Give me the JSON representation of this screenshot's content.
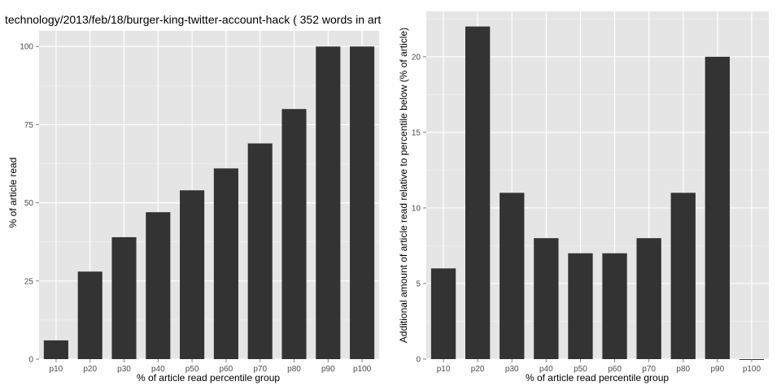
{
  "chart_data": [
    {
      "type": "bar",
      "title": "technology/2013/feb/18/burger-king-twitter-account-hack ( 352 words in art",
      "xlabel": "% of article read percentile group",
      "ylabel": "% of article read",
      "categories": [
        "p10",
        "p20",
        "p30",
        "p40",
        "p50",
        "p60",
        "p70",
        "p80",
        "p90",
        "p100"
      ],
      "values": [
        6,
        28,
        39,
        47,
        54,
        61,
        69,
        80,
        100,
        100
      ],
      "ylim": [
        0,
        105
      ],
      "yticks": [
        0,
        25,
        50,
        75,
        100
      ],
      "grid": true,
      "bar_color": "#333333",
      "panel_bg": "#e5e5e5",
      "grid_color": "#ffffff"
    },
    {
      "type": "bar",
      "title": "",
      "xlabel": "% of article read percentile group",
      "ylabel": "Additional amount of article read relative to percentile below (% of article)",
      "categories": [
        "p10",
        "p20",
        "p30",
        "p40",
        "p50",
        "p60",
        "p70",
        "p80",
        "p90",
        "p100"
      ],
      "values": [
        6,
        22,
        11,
        8,
        7,
        7,
        8,
        11,
        20,
        0
      ],
      "ylim": [
        0,
        23
      ],
      "yticks": [
        0,
        5,
        10,
        15,
        20
      ],
      "grid": true,
      "bar_color": "#333333",
      "panel_bg": "#e5e5e5",
      "grid_color": "#ffffff"
    }
  ]
}
